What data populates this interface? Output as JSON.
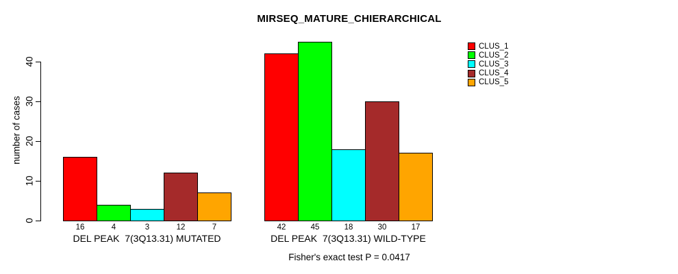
{
  "title": "MIRSEQ_MATURE_CHIERARCHICAL",
  "ylabel": "number of cases",
  "caption": "Fisher's exact test P = 0.0417",
  "chart_data": {
    "type": "bar",
    "title": "MIRSEQ_MATURE_CHIERARCHICAL",
    "xlabel": "",
    "ylabel": "number of cases",
    "ylim": [
      0,
      45
    ],
    "y_ticks": [
      0,
      10,
      20,
      30,
      40
    ],
    "grid": false,
    "legend_position": "right",
    "bar_value_labels_shown": true,
    "categories": [
      "DEL PEAK  7(3Q13.31) MUTATED",
      "DEL PEAK  7(3Q13.31) WILD-TYPE"
    ],
    "series": [
      {
        "name": "CLUS_1",
        "color": "#FF0000",
        "values": [
          16,
          42
        ]
      },
      {
        "name": "CLUS_2",
        "color": "#00FF00",
        "values": [
          4,
          45
        ]
      },
      {
        "name": "CLUS_3",
        "color": "#00FFFF",
        "values": [
          3,
          18
        ]
      },
      {
        "name": "CLUS_4",
        "color": "#A52A2A",
        "values": [
          12,
          30
        ]
      },
      {
        "name": "CLUS_5",
        "color": "#FFA500",
        "values": [
          7,
          17
        ]
      }
    ],
    "annotation": "Fisher's exact test P = 0.0417"
  }
}
